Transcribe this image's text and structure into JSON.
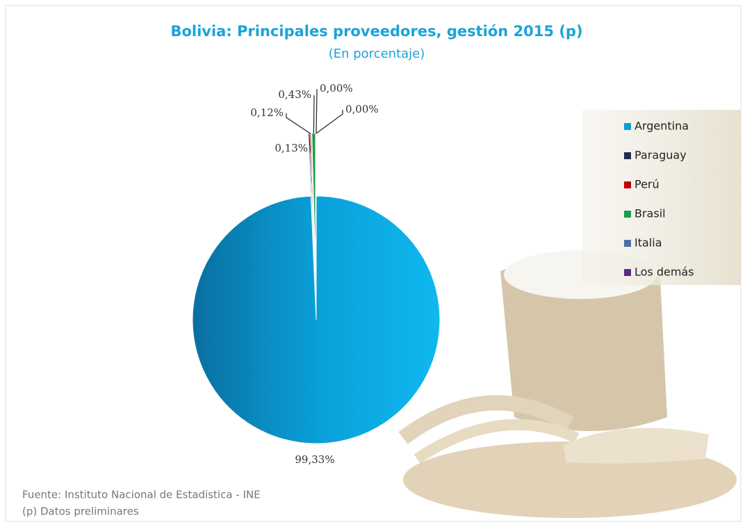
{
  "chart_data": {
    "type": "pie",
    "title": "Bolivia: Principales proveedores, gestión 2015 (p)",
    "subtitle": "(En porcentaje)",
    "categories": [
      "Argentina",
      "Paraguay",
      "Perú",
      "Brasil",
      "Italia",
      "Los demás"
    ],
    "values": [
      99.33,
      0.13,
      0.12,
      0.43,
      0,
      0
    ],
    "value_labels": [
      "99,33%",
      "0,13%",
      "0,12%",
      "0,43%",
      "0,00%",
      "0,00%"
    ],
    "colors": [
      "#0a9fd8",
      "#1f2d4d",
      "#c00000",
      "#1e9a4b",
      "#4a6fa5",
      "#5b2a86"
    ],
    "legend": "right",
    "source": "Fuente: Instituto Nacional de Estadistica - INE",
    "note": "(p) Datos preliminares"
  }
}
